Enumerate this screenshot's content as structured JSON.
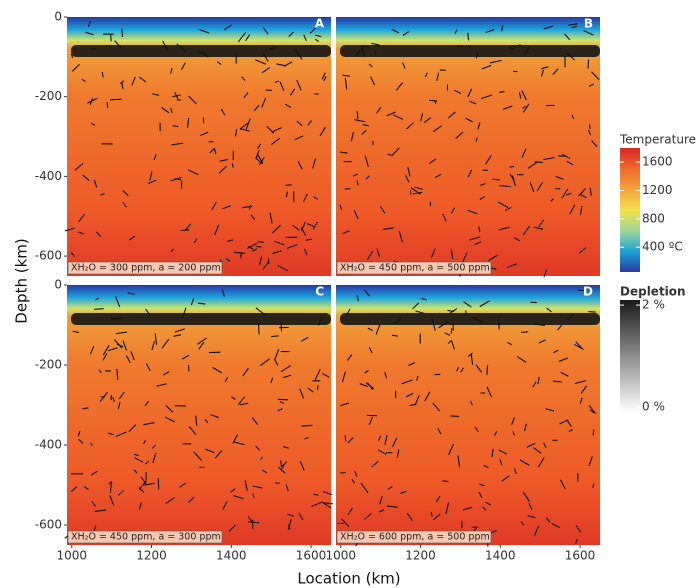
{
  "chart_data": {
    "type": "field",
    "xlabel": "Location (km)",
    "ylabel": "Depth (km)",
    "xlim": [
      988,
      1650
    ],
    "ylim": [
      0,
      -650
    ],
    "xticks": [
      1000,
      1200,
      1400,
      1600
    ],
    "yticks": [
      0,
      -200,
      -400,
      -600
    ],
    "panels": [
      {
        "label": "A",
        "annotation": "XH₂O = 300 ppm, a = 200 ppm"
      },
      {
        "label": "B",
        "annotation": "XH₂O = 450 ppm, a = 500 ppm"
      },
      {
        "label": "C",
        "annotation": "XH₂O = 450 ppm, a = 300 ppm"
      },
      {
        "label": "D",
        "annotation": "XH₂O = 600 ppm, a = 500 ppm"
      }
    ],
    "colorbars": [
      {
        "title": "Temperature",
        "lim": [
          50,
          1800
        ],
        "colors": [
          "#2a3b9f",
          "#1fa3d8",
          "#9fd79a",
          "#f3e24a",
          "#f5a23c",
          "#ef6a2a",
          "#d8262a"
        ],
        "ticks": [
          1600,
          1200,
          800,
          {
            "value": 400,
            "label": "400 ºC"
          }
        ]
      },
      {
        "title": "Depletion",
        "lim": [
          -0.1,
          2.1
        ],
        "colors": [
          "#ffffff",
          "#1a1a1a"
        ],
        "ticks": [
          {
            "value": 2,
            "label": "2 %"
          },
          {
            "value": 0,
            "label": "0 %"
          }
        ]
      }
    ]
  }
}
